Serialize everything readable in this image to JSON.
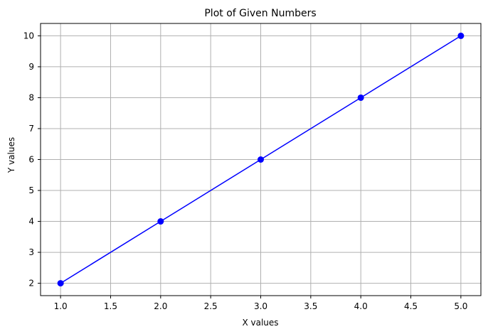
{
  "chart_data": {
    "type": "line",
    "title": "Plot of Given Numbers",
    "xlabel": "X values",
    "ylabel": "Y values",
    "x": [
      1,
      2,
      3,
      4,
      5
    ],
    "series": [
      {
        "values": [
          2,
          4,
          6,
          8,
          10
        ],
        "color": "#0000ff",
        "marker": "circle"
      }
    ],
    "xlim": [
      0.8,
      5.2
    ],
    "ylim": [
      1.6,
      10.4
    ],
    "xticks": [
      "1.0",
      "1.5",
      "2.0",
      "2.5",
      "3.0",
      "3.5",
      "4.0",
      "4.5",
      "5.0"
    ],
    "yticks": [
      "2",
      "3",
      "4",
      "5",
      "6",
      "7",
      "8",
      "9",
      "10"
    ],
    "grid": true,
    "legend": "none",
    "colors": {
      "grid": "#b0b0b0",
      "axis": "#000000"
    }
  }
}
